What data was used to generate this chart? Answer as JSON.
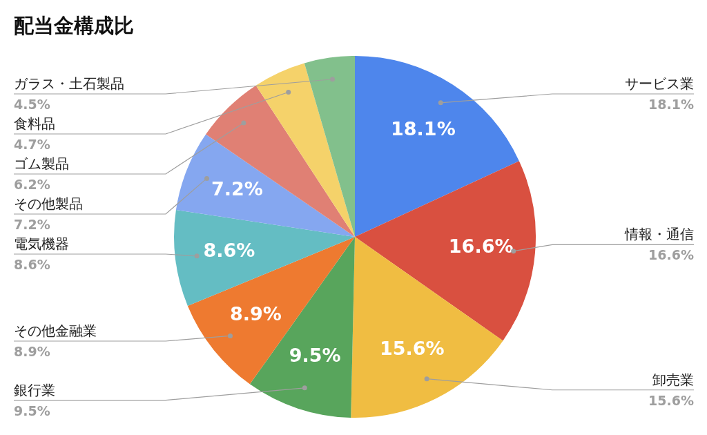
{
  "chart_data": {
    "type": "pie",
    "title": "配当金構成比",
    "categories": [
      "サービス業",
      "情報・通信",
      "卸売業",
      "銀行業",
      "その他金融業",
      "電気機器",
      "その他製品",
      "ゴム製品",
      "食料品",
      "ガラス・土石製品"
    ],
    "values": [
      18.1,
      16.6,
      15.6,
      9.5,
      8.9,
      8.6,
      7.2,
      6.2,
      4.7,
      4.5
    ],
    "colors": [
      "#4e86ec",
      "#d95040",
      "#f0bd42",
      "#58a55c",
      "#ee7a30",
      "#64bdc3",
      "#85a7f0",
      "#e08074",
      "#f5d26a",
      "#82c08c"
    ],
    "value_labels": [
      "18.1%",
      "16.6%",
      "15.6%",
      "9.5%",
      "8.9%",
      "8.6%",
      "7.2%",
      "6.2%",
      "4.7%",
      "4.5%"
    ],
    "legend": false
  }
}
